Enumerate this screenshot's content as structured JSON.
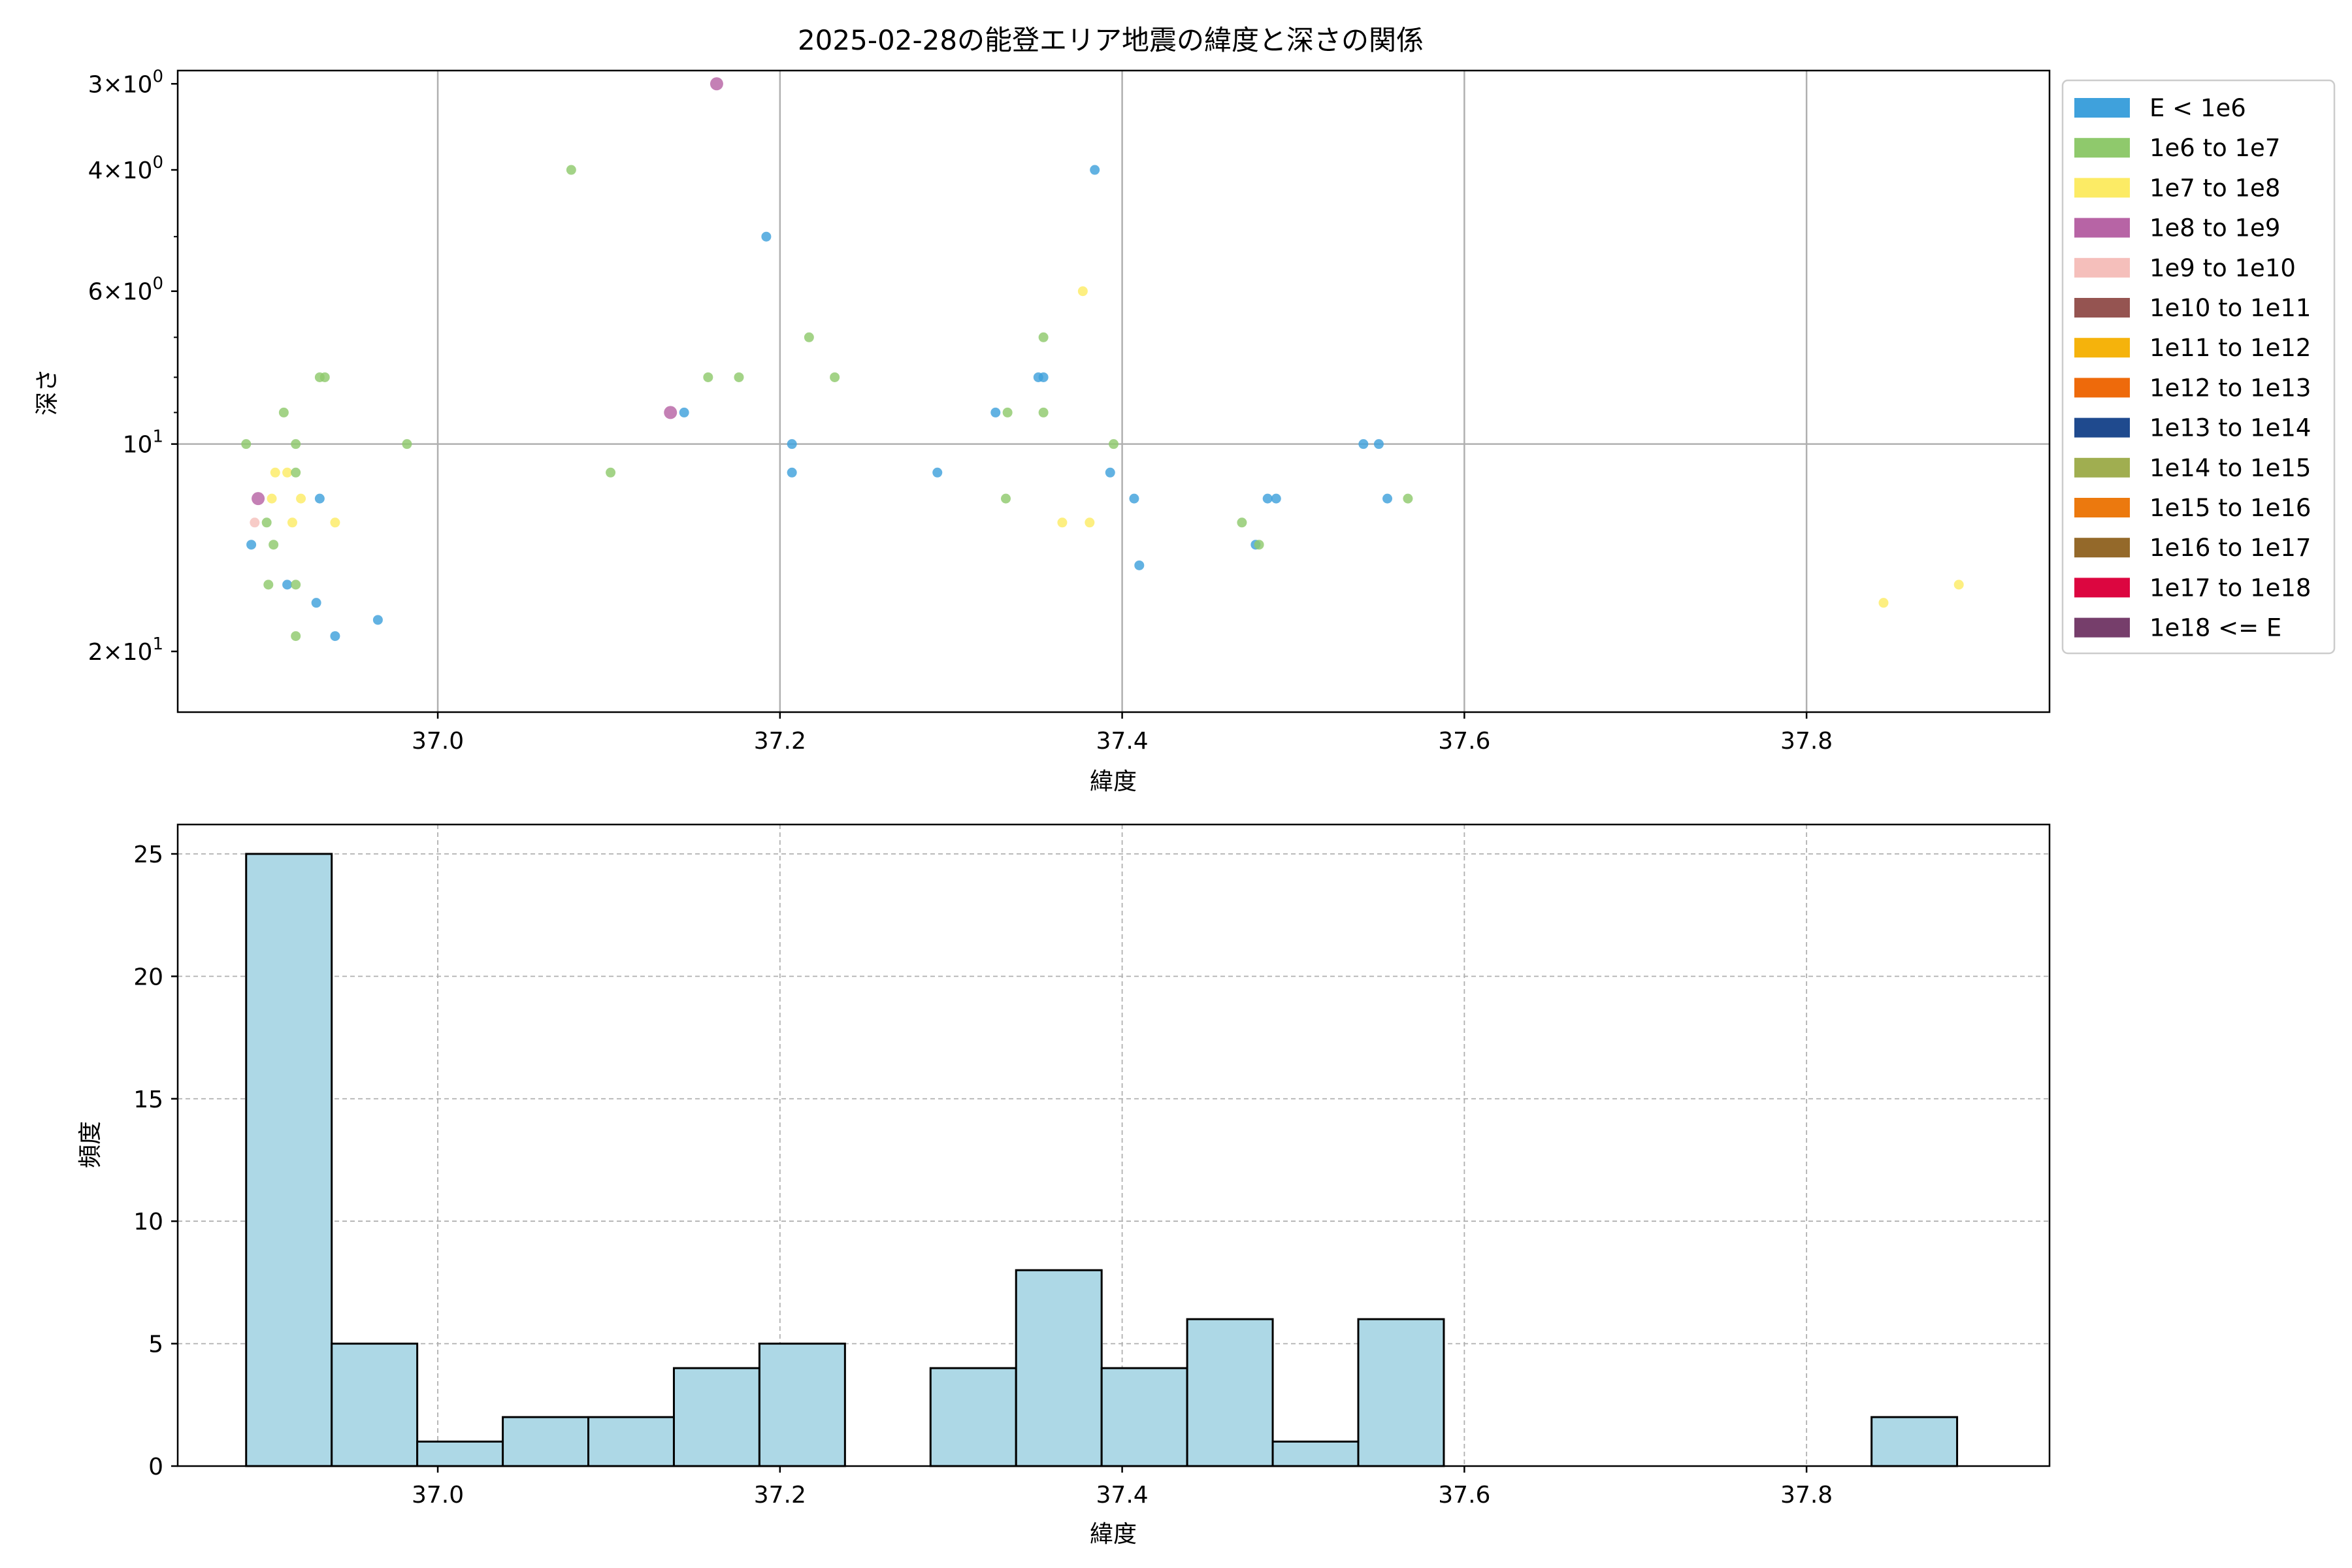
{
  "chart_data": [
    {
      "type": "scatter",
      "title": "2025-02-28の能登エリア地震の緯度と深さの関係",
      "xlabel": "緯度",
      "ylabel": "深さ",
      "xlim": [
        36.848,
        37.942
      ],
      "ylim": [
        24.5,
        2.87
      ],
      "yscale": "log",
      "y_inverted": true,
      "xticks": [
        37.0,
        37.2,
        37.4,
        37.6,
        37.8
      ],
      "xtick_labels": [
        "37.0",
        "37.2",
        "37.4",
        "37.6",
        "37.8"
      ],
      "yticks": [
        3,
        4,
        6,
        10,
        20
      ],
      "ytick_labels": [
        "3 × 10^0",
        "4 × 10^0",
        "6 × 10^0",
        "10^1",
        "2 × 10^1"
      ],
      "grid": true,
      "legend": {
        "placement": "outside-right",
        "entries": [
          {
            "label": "E < 1e6",
            "color": "#3FA1DC"
          },
          {
            "label": "1e6 to 1e7",
            "color": "#8FC96C"
          },
          {
            "label": "1e7 to 1e8",
            "color": "#FCEB65"
          },
          {
            "label": "1e8 to 1e9",
            "color": "#B764A5"
          },
          {
            "label": "1e9 to 1e10",
            "color": "#F5BFBB"
          },
          {
            "label": "1e10 to 1e11",
            "color": "#955451"
          },
          {
            "label": "1e11 to 1e12",
            "color": "#F5B30C"
          },
          {
            "label": "1e12 to 1e13",
            "color": "#EE6A0B"
          },
          {
            "label": "1e13 to 1e14",
            "color": "#1F4A8E"
          },
          {
            "label": "1e14 to 1e15",
            "color": "#A0AE50"
          },
          {
            "label": "1e15 to 1e16",
            "color": "#EC790E"
          },
          {
            "label": "1e16 to 1e17",
            "color": "#94692A"
          },
          {
            "label": "1e17 to 1e18",
            "color": "#DC0640"
          },
          {
            "label": "1e18 <= E",
            "color": "#763E6B"
          }
        ]
      },
      "points": [
        {
          "x": 37.163,
          "y": 3.0,
          "c": 3
        },
        {
          "x": 37.078,
          "y": 4.0,
          "c": 1
        },
        {
          "x": 37.384,
          "y": 4.0,
          "c": 0
        },
        {
          "x": 37.192,
          "y": 5.0,
          "c": 0
        },
        {
          "x": 37.377,
          "y": 6.0,
          "c": 2
        },
        {
          "x": 37.217,
          "y": 7.0,
          "c": 1
        },
        {
          "x": 37.354,
          "y": 7.0,
          "c": 1
        },
        {
          "x": 36.931,
          "y": 8.0,
          "c": 1
        },
        {
          "x": 36.934,
          "y": 8.0,
          "c": 1
        },
        {
          "x": 37.158,
          "y": 8.0,
          "c": 1
        },
        {
          "x": 37.176,
          "y": 8.0,
          "c": 1
        },
        {
          "x": 37.232,
          "y": 8.0,
          "c": 1
        },
        {
          "x": 37.351,
          "y": 8.0,
          "c": 0
        },
        {
          "x": 37.354,
          "y": 8.0,
          "c": 0
        },
        {
          "x": 36.91,
          "y": 9.0,
          "c": 1
        },
        {
          "x": 37.136,
          "y": 9.0,
          "c": 3
        },
        {
          "x": 37.144,
          "y": 9.0,
          "c": 0
        },
        {
          "x": 37.326,
          "y": 9.0,
          "c": 0
        },
        {
          "x": 37.333,
          "y": 9.0,
          "c": 1
        },
        {
          "x": 37.354,
          "y": 9.0,
          "c": 1
        },
        {
          "x": 36.888,
          "y": 10.0,
          "c": 1
        },
        {
          "x": 36.917,
          "y": 10.0,
          "c": 1
        },
        {
          "x": 36.982,
          "y": 10.0,
          "c": 1
        },
        {
          "x": 37.207,
          "y": 10.0,
          "c": 0
        },
        {
          "x": 37.395,
          "y": 10.0,
          "c": 1
        },
        {
          "x": 37.541,
          "y": 10.0,
          "c": 0
        },
        {
          "x": 37.55,
          "y": 10.0,
          "c": 0
        },
        {
          "x": 36.905,
          "y": 11.0,
          "c": 2
        },
        {
          "x": 36.912,
          "y": 11.0,
          "c": 2
        },
        {
          "x": 36.917,
          "y": 11.0,
          "c": 1
        },
        {
          "x": 37.101,
          "y": 11.0,
          "c": 1
        },
        {
          "x": 37.207,
          "y": 11.0,
          "c": 0
        },
        {
          "x": 37.292,
          "y": 11.0,
          "c": 0
        },
        {
          "x": 37.393,
          "y": 11.0,
          "c": 0
        },
        {
          "x": 36.895,
          "y": 12.0,
          "c": 3
        },
        {
          "x": 36.903,
          "y": 12.0,
          "c": 2
        },
        {
          "x": 36.92,
          "y": 12.0,
          "c": 2
        },
        {
          "x": 36.931,
          "y": 12.0,
          "c": 0
        },
        {
          "x": 37.332,
          "y": 12.0,
          "c": 1
        },
        {
          "x": 37.407,
          "y": 12.0,
          "c": 0
        },
        {
          "x": 37.485,
          "y": 12.0,
          "c": 0
        },
        {
          "x": 37.49,
          "y": 12.0,
          "c": 0
        },
        {
          "x": 37.555,
          "y": 12.0,
          "c": 0
        },
        {
          "x": 37.567,
          "y": 12.0,
          "c": 1
        },
        {
          "x": 36.893,
          "y": 13.0,
          "c": 4
        },
        {
          "x": 36.9,
          "y": 13.0,
          "c": 1
        },
        {
          "x": 36.915,
          "y": 13.0,
          "c": 2
        },
        {
          "x": 36.94,
          "y": 13.0,
          "c": 2
        },
        {
          "x": 37.365,
          "y": 13.0,
          "c": 2
        },
        {
          "x": 37.381,
          "y": 13.0,
          "c": 2
        },
        {
          "x": 37.47,
          "y": 13.0,
          "c": 1
        },
        {
          "x": 36.891,
          "y": 14.0,
          "c": 0
        },
        {
          "x": 36.904,
          "y": 14.0,
          "c": 1
        },
        {
          "x": 37.478,
          "y": 14.0,
          "c": 0
        },
        {
          "x": 37.48,
          "y": 14.0,
          "c": 1
        },
        {
          "x": 37.41,
          "y": 15.0,
          "c": 0
        },
        {
          "x": 36.901,
          "y": 16.0,
          "c": 1
        },
        {
          "x": 36.912,
          "y": 16.0,
          "c": 0
        },
        {
          "x": 36.917,
          "y": 16.0,
          "c": 1
        },
        {
          "x": 37.889,
          "y": 16.0,
          "c": 2
        },
        {
          "x": 36.929,
          "y": 17.0,
          "c": 0
        },
        {
          "x": 37.845,
          "y": 17.0,
          "c": 2
        },
        {
          "x": 36.965,
          "y": 18.0,
          "c": 0
        },
        {
          "x": 36.94,
          "y": 19.0,
          "c": 0
        },
        {
          "x": 36.917,
          "y": 19.0,
          "c": 1
        }
      ]
    },
    {
      "type": "bar",
      "xlabel": "緯度",
      "ylabel": "頻度",
      "xlim": [
        36.848,
        37.942
      ],
      "ylim": [
        0,
        26.2
      ],
      "xticks": [
        37.0,
        37.2,
        37.4,
        37.6,
        37.8
      ],
      "xtick_labels": [
        "37.0",
        "37.2",
        "37.4",
        "37.6",
        "37.8"
      ],
      "yticks": [
        0,
        5,
        10,
        15,
        20,
        25
      ],
      "ytick_labels": [
        "0",
        "5",
        "10",
        "15",
        "20",
        "25"
      ],
      "grid": true,
      "bar_color": "#ADD8E6",
      "edge_color": "#000000",
      "bins": [
        {
          "x0": 36.888,
          "x1": 36.938,
          "value": 25
        },
        {
          "x0": 36.938,
          "x1": 36.988,
          "value": 5
        },
        {
          "x0": 36.988,
          "x1": 37.038,
          "value": 1
        },
        {
          "x0": 37.038,
          "x1": 37.088,
          "value": 2
        },
        {
          "x0": 37.088,
          "x1": 37.138,
          "value": 2
        },
        {
          "x0": 37.138,
          "x1": 37.188,
          "value": 4
        },
        {
          "x0": 37.188,
          "x1": 37.238,
          "value": 5
        },
        {
          "x0": 37.238,
          "x1": 37.288,
          "value": 0
        },
        {
          "x0": 37.288,
          "x1": 37.338,
          "value": 4
        },
        {
          "x0": 37.338,
          "x1": 37.388,
          "value": 8
        },
        {
          "x0": 37.388,
          "x1": 37.438,
          "value": 4
        },
        {
          "x0": 37.438,
          "x1": 37.488,
          "value": 6
        },
        {
          "x0": 37.488,
          "x1": 37.538,
          "value": 1
        },
        {
          "x0": 37.538,
          "x1": 37.588,
          "value": 6
        },
        {
          "x0": 37.588,
          "x1": 37.638,
          "value": 0
        },
        {
          "x0": 37.638,
          "x1": 37.688,
          "value": 0
        },
        {
          "x0": 37.688,
          "x1": 37.738,
          "value": 0
        },
        {
          "x0": 37.738,
          "x1": 37.788,
          "value": 0
        },
        {
          "x0": 37.788,
          "x1": 37.838,
          "value": 0
        },
        {
          "x0": 37.838,
          "x1": 37.888,
          "value": 2
        }
      ]
    }
  ]
}
